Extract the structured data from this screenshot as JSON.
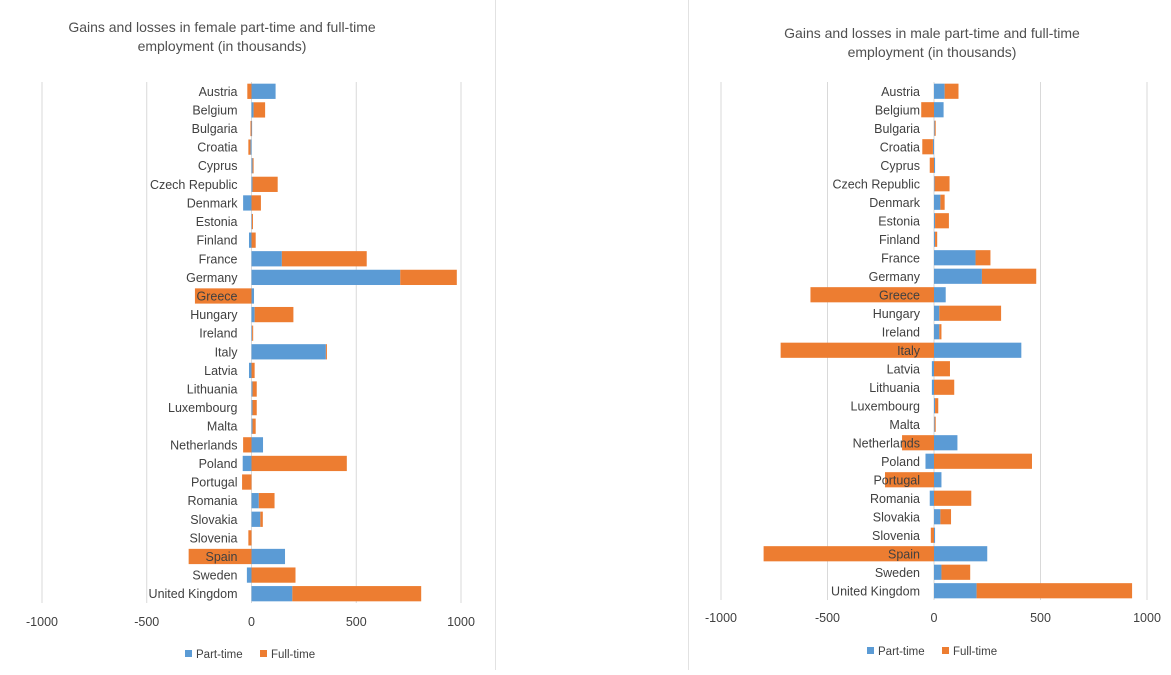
{
  "chart_data": [
    {
      "type": "bar",
      "orientation": "horizontal",
      "stacked": true,
      "title_lines": [
        "Gains and losses in female part-time and full-time",
        "employment  (in thousands)"
      ],
      "categories": [
        "Austria",
        "Belgium",
        "Bulgaria",
        "Croatia",
        "Cyprus",
        "Czech Republic",
        "Denmark",
        "Estonia",
        "Finland",
        "France",
        "Germany",
        "Greece",
        "Hungary",
        "Ireland",
        "Italy",
        "Latvia",
        "Lithuania",
        "Luxembourg",
        "Malta",
        "Netherlands",
        "Poland",
        "Portugal",
        "Romania",
        "Slovakia",
        "Slovenia",
        "Spain",
        "Sweden",
        "United Kingdom"
      ],
      "series": [
        {
          "name": "Part-time",
          "color": "#5B9BD5",
          "values": [
            115,
            10,
            2,
            -5,
            5,
            5,
            -40,
            2,
            -12,
            145,
            710,
            12,
            15,
            3,
            355,
            -12,
            5,
            5,
            5,
            55,
            -42,
            0,
            35,
            42,
            0,
            160,
            -22,
            195
          ]
        },
        {
          "name": "Full-time",
          "color": "#ED7D31",
          "values": [
            -20,
            55,
            -5,
            -10,
            5,
            120,
            45,
            5,
            20,
            405,
            270,
            -270,
            185,
            5,
            5,
            15,
            20,
            20,
            15,
            -40,
            455,
            -45,
            75,
            12,
            -15,
            -300,
            210,
            615
          ]
        }
      ],
      "xlim": [
        -1000,
        1000
      ],
      "xticks": [
        -1000,
        -500,
        0,
        500,
        1000
      ],
      "grid": true,
      "legend": "bottom"
    },
    {
      "type": "bar",
      "orientation": "horizontal",
      "stacked": true,
      "title_lines": [
        "Gains and losses in male part-time and full-time",
        "employment  (in thousands)"
      ],
      "categories": [
        "Austria",
        "Belgium",
        "Bulgaria",
        "Croatia",
        "Cyprus",
        "Czech Republic",
        "Denmark",
        "Estonia",
        "Finland",
        "France",
        "Germany",
        "Greece",
        "Hungary",
        "Ireland",
        "Italy",
        "Latvia",
        "Lithuania",
        "Luxembourg",
        "Malta",
        "Netherlands",
        "Poland",
        "Portugal",
        "Romania",
        "Slovakia",
        "Slovenia",
        "Spain",
        "Sweden",
        "United Kingdom"
      ],
      "series": [
        {
          "name": "Part-time",
          "color": "#5B9BD5",
          "values": [
            50,
            45,
            3,
            -5,
            5,
            3,
            30,
            5,
            5,
            195,
            225,
            55,
            25,
            25,
            410,
            -10,
            -10,
            5,
            3,
            110,
            -40,
            35,
            -20,
            30,
            5,
            250,
            35,
            200
          ]
        },
        {
          "name": "Full-time",
          "color": "#ED7D31",
          "values": [
            65,
            -60,
            5,
            -50,
            -20,
            70,
            20,
            65,
            10,
            70,
            255,
            -580,
            290,
            10,
            -720,
            75,
            95,
            15,
            5,
            -150,
            460,
            -230,
            175,
            50,
            -15,
            -800,
            135,
            730
          ]
        }
      ],
      "xlim": [
        -1000,
        1000
      ],
      "xticks": [
        -1000,
        -500,
        0,
        500,
        1000
      ],
      "grid": true,
      "legend": "bottom"
    }
  ]
}
